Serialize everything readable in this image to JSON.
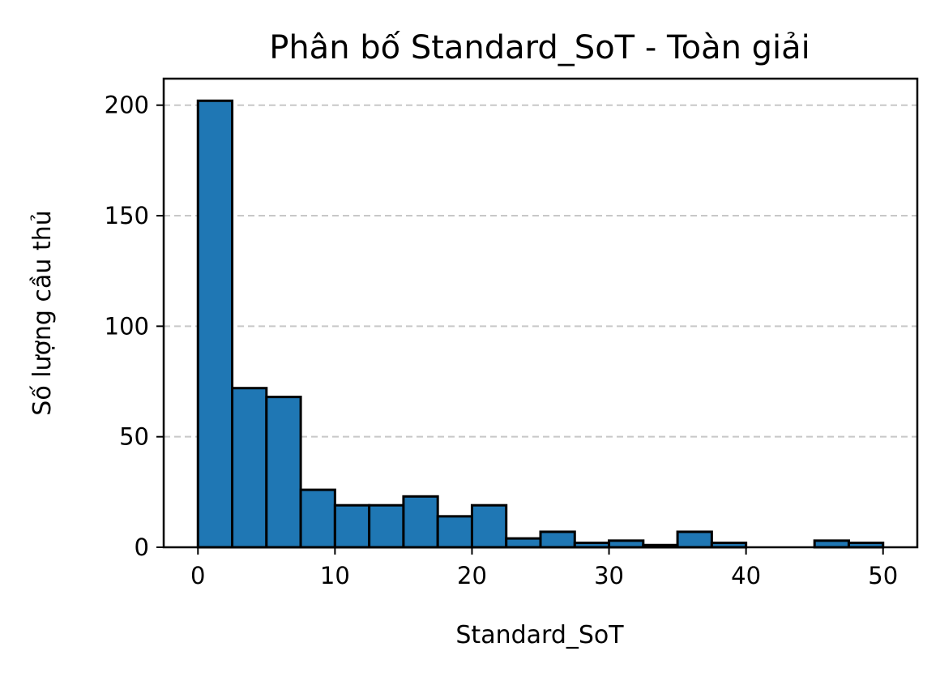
{
  "chart_data": {
    "type": "bar",
    "title": "Phân bố Standard_SoT - Toàn giải",
    "xlabel": "Standard_SoT",
    "ylabel": "Số lượng cầu thủ",
    "bin_edges": [
      0,
      2.5,
      5,
      7.5,
      10,
      12.5,
      15,
      17.5,
      20,
      22.5,
      25,
      27.5,
      30,
      32.5,
      35,
      37.5,
      40,
      42.5,
      45,
      47.5,
      50
    ],
    "values": [
      202,
      72,
      68,
      26,
      19,
      19,
      23,
      14,
      19,
      4,
      7,
      2,
      3,
      1,
      7,
      2,
      0,
      0,
      3,
      2
    ],
    "xlim": [
      -2.5,
      52.5
    ],
    "ylim": [
      0,
      212
    ],
    "xticks": [
      0,
      10,
      20,
      30,
      40,
      50
    ],
    "yticks": [
      0,
      50,
      100,
      150,
      200
    ],
    "grid": "y-dashed",
    "bar_color": "#1f77b4",
    "edge_color": "#000000"
  }
}
